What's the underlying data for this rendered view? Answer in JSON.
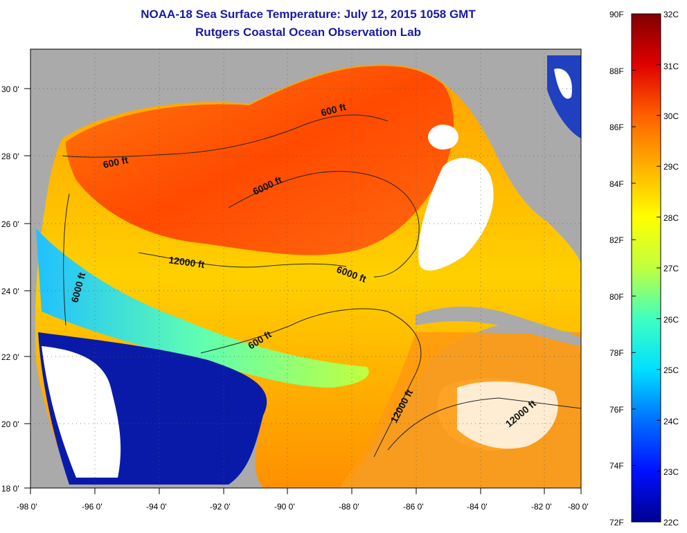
{
  "title": "NOAA-18 Sea Surface Temperature:  July 12, 2015 1058 GMT",
  "subtitle": "Rutgers Coastal Ocean Observation Lab",
  "x_ticks": [
    "-98 0'",
    "-96 0'",
    "-94 0'",
    "-92 0'",
    "-90 0'",
    "-88 0'",
    "-86 0'",
    "-84 0'",
    "-82 0'",
    "-80 0'"
  ],
  "y_ticks": [
    "18 0'",
    "20 0'",
    "22 0'",
    "24 0'",
    "26 0'",
    "28 0'",
    "30 0'"
  ],
  "contour_labels": [
    "600 ft",
    "600 ft",
    "6000 ft",
    "12000 ft",
    "6000 ft",
    "6000 ft",
    "600 ft",
    "12000 ft",
    "12000 ft"
  ],
  "colorbar": {
    "fahrenheit": [
      "90F",
      "88F",
      "86F",
      "84F",
      "82F",
      "80F",
      "78F",
      "76F",
      "74F",
      "72F"
    ],
    "celsius": [
      "32C",
      "31C",
      "30C",
      "29C",
      "28C",
      "27C",
      "26C",
      "25C",
      "24C",
      "23C",
      "22C"
    ],
    "colors": [
      "#00008f",
      "#0010ff",
      "#0080ff",
      "#00e0ff",
      "#40ffc0",
      "#c0ff40",
      "#ffff00",
      "#ffb000",
      "#ff6000",
      "#e00000",
      "#800000"
    ]
  },
  "colors": {
    "land": "#aaaaaa",
    "cloud": "#ffffff",
    "title": "#1a1aa0"
  }
}
